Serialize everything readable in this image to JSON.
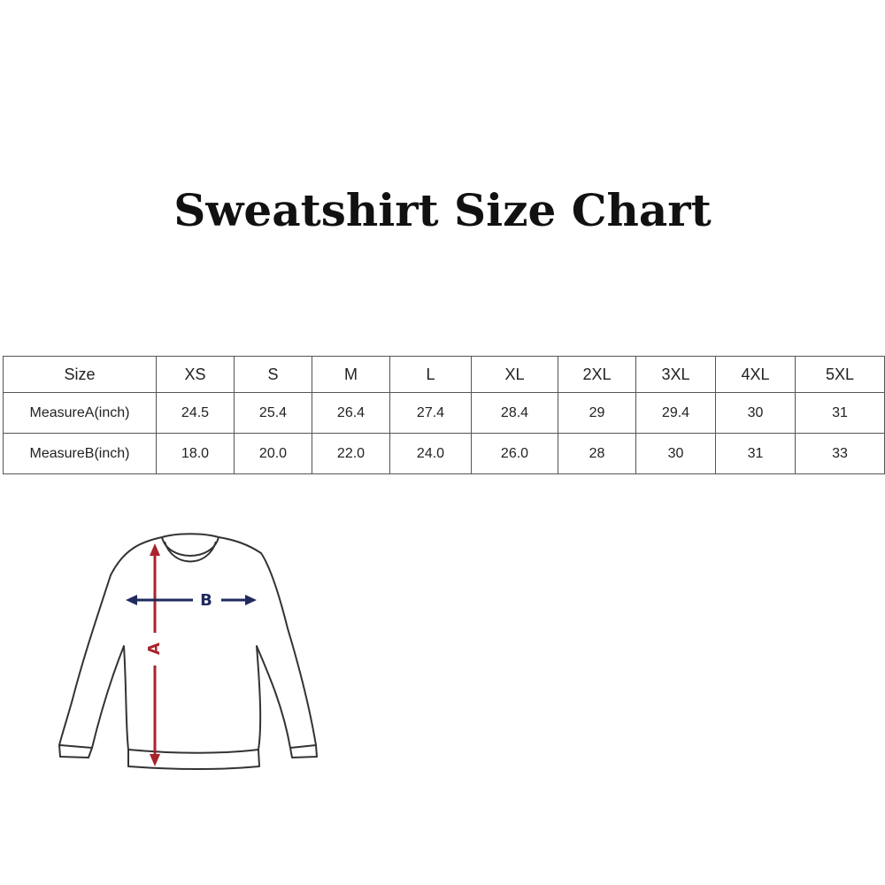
{
  "title": "Sweatshirt Size Chart",
  "table": {
    "header": {
      "label": "Size",
      "sizes": [
        "XS",
        "S",
        "M",
        "L",
        "XL",
        "2XL",
        "3XL",
        "4XL",
        "5XL"
      ]
    },
    "rows": [
      {
        "label": "MeasureA(inch)",
        "values": [
          "24.5",
          "25.4",
          "26.4",
          "27.4",
          "28.4",
          "29",
          "29.4",
          "30",
          "31"
        ]
      },
      {
        "label": "MeasureB(inch)",
        "values": [
          "18.0",
          "20.0",
          "22.0",
          "24.0",
          "26.0",
          "28",
          "30",
          "31",
          "33"
        ]
      }
    ]
  },
  "diagram": {
    "label_a": "A",
    "label_b": "B",
    "colors": {
      "a_arrow": "#a8232b",
      "b_arrow": "#1f2a5e",
      "outline": "#333333"
    }
  }
}
